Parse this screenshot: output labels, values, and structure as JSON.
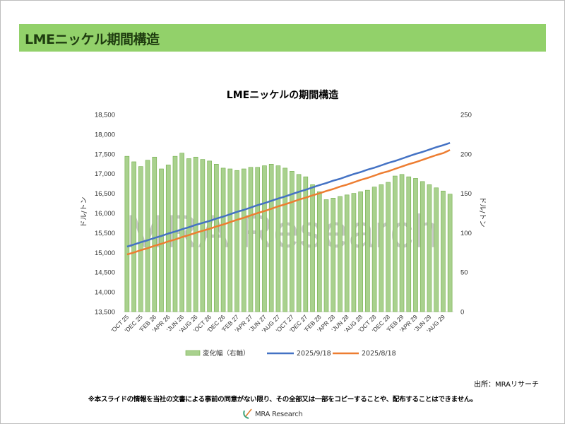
{
  "header": {
    "title": "LMEニッケル期間構造"
  },
  "footer": {
    "source": "出所：MRAリサーチ",
    "notice": "※本スライドの情報を当社の文書による事前の同意がない限り、その全部又は一部をコピーすることや、配布することはできません。",
    "logo_text": "MRA Research"
  },
  "watermark": "MRA Research",
  "colors": {
    "header_bg": "#92d16a",
    "bar": "#a9d18e",
    "bar_edge": "#70ad47",
    "blue": "#4472c4",
    "orange": "#ed7d31"
  },
  "chart_data": {
    "type": "bar+line",
    "title": "LMEニッケルの期間構造",
    "ylabel_left": "ドル/トン",
    "ylabel_right": "ドル/トン",
    "ylim_left": [
      13500,
      18500
    ],
    "ylim_right": [
      0,
      250
    ],
    "yticks_left": [
      "13,500",
      "14,000",
      "14,500",
      "15,000",
      "15,500",
      "16,000",
      "16,500",
      "17,000",
      "17,500",
      "18,000",
      "18,500"
    ],
    "yticks_right": [
      "0",
      "50",
      "100",
      "150",
      "200",
      "250"
    ],
    "xtick_labels": [
      "'OCT 25",
      "'DEC 25",
      "'FEB 26",
      "'APR 26",
      "'JUN 26",
      "'AUG 26",
      "'OCT 26",
      "'DEC 26",
      "'FEB 27",
      "'APR 27",
      "'JUN 27",
      "'AUG 27",
      "'OCT 27",
      "'DEC 27",
      "'FEB 28",
      "'APR 28",
      "'JUN 28",
      "'AUG 28",
      "'OCT 28",
      "'DEC 28",
      "'FEB 29",
      "'APR 29",
      "'JUN 29",
      "'AUG 29"
    ],
    "n_points": 48,
    "legend_position": "bottom",
    "series": [
      {
        "name": "変化幅（右軸）",
        "type": "bar",
        "axis": "right",
        "values": [
          197,
          190,
          184,
          192,
          196,
          181,
          186,
          197,
          201,
          194,
          196,
          193,
          191,
          187,
          182,
          181,
          179,
          181,
          183,
          183,
          185,
          187,
          185,
          182,
          178,
          174,
          171,
          161,
          152,
          142,
          144,
          146,
          148,
          150,
          152,
          154,
          158,
          161,
          164,
          172,
          174,
          171,
          169,
          165,
          161,
          157,
          153,
          149
        ]
      },
      {
        "name": "2025/9/18",
        "type": "line",
        "axis": "left",
        "values": [
          15150,
          15200,
          15260,
          15310,
          15370,
          15420,
          15480,
          15530,
          15590,
          15640,
          15700,
          15750,
          15800,
          15860,
          15910,
          15970,
          16030,
          16080,
          16140,
          16200,
          16250,
          16310,
          16370,
          16420,
          16480,
          16540,
          16590,
          16650,
          16710,
          16760,
          16820,
          16870,
          16930,
          16990,
          17040,
          17100,
          17150,
          17210,
          17270,
          17320,
          17380,
          17440,
          17500,
          17550,
          17610,
          17670,
          17720,
          17780
        ]
      },
      {
        "name": "2025/8/18",
        "type": "line",
        "axis": "left",
        "values": [
          14950,
          15000,
          15060,
          15110,
          15170,
          15220,
          15280,
          15330,
          15390,
          15440,
          15500,
          15550,
          15600,
          15660,
          15710,
          15770,
          15830,
          15880,
          15940,
          16000,
          16050,
          16110,
          16170,
          16220,
          16280,
          16340,
          16390,
          16450,
          16500,
          16560,
          16610,
          16670,
          16720,
          16780,
          16840,
          16890,
          16950,
          17010,
          17060,
          17120,
          17180,
          17240,
          17290,
          17350,
          17410,
          17470,
          17520,
          17600
        ]
      }
    ]
  }
}
